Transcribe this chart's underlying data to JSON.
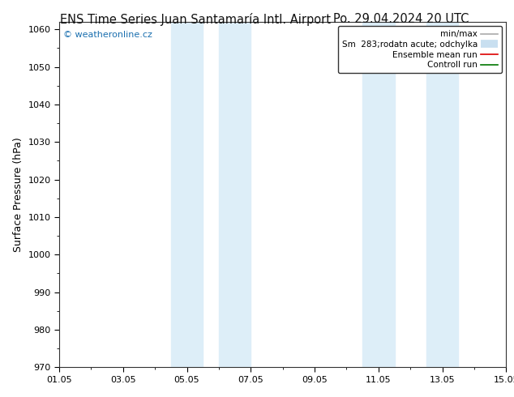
{
  "title_left": "ENS Time Series Juan Santamaría Intl. Airport",
  "title_right": "Po. 29.04.2024 20 UTC",
  "ylabel": "Surface Pressure (hPa)",
  "ylim": [
    970,
    1062
  ],
  "yticks": [
    970,
    980,
    990,
    1000,
    1010,
    1020,
    1030,
    1040,
    1050,
    1060
  ],
  "xlim": [
    0,
    14
  ],
  "xtick_positions": [
    0,
    2,
    4,
    6,
    8,
    10,
    12,
    14
  ],
  "xtick_labels": [
    "01.05",
    "03.05",
    "05.05",
    "07.05",
    "09.05",
    "11.05",
    "13.05",
    "15.05"
  ],
  "shaded_bands": [
    {
      "xstart": 3.5,
      "xend": 4.5
    },
    {
      "xstart": 5.0,
      "xend": 6.0
    },
    {
      "xstart": 9.5,
      "xend": 10.5
    },
    {
      "xstart": 11.5,
      "xend": 12.5
    }
  ],
  "shade_color": "#ddeef8",
  "watermark_text": "© weatheronline.cz",
  "watermark_color": "#1a6faf",
  "legend_entries": [
    {
      "label": "min/max",
      "color": "#aaaaaa",
      "lw": 1.2
    },
    {
      "label": "Sm  283;rodatn acute; odchylka",
      "color": "#c8dff0",
      "lw": 7
    },
    {
      "label": "Ensemble mean run",
      "color": "#dd0000",
      "lw": 1.2
    },
    {
      "label": "Controll run",
      "color": "#007700",
      "lw": 1.2
    }
  ],
  "background_color": "#ffffff",
  "plot_bg_color": "#ffffff",
  "border_color": "#333333",
  "title_fontsize": 10.5,
  "tick_fontsize": 8,
  "ylabel_fontsize": 9,
  "watermark_fontsize": 8
}
